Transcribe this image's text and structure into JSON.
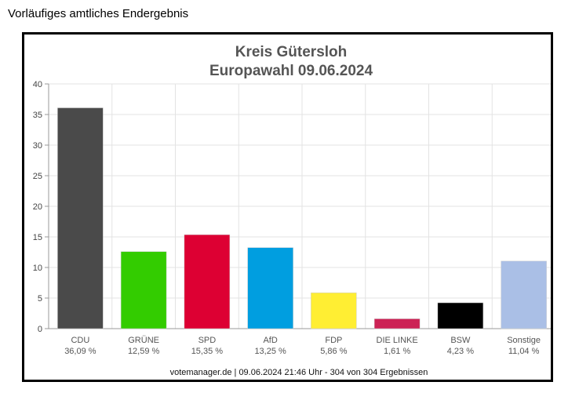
{
  "page": {
    "heading": "Vorläufiges amtliches Endergebnis"
  },
  "chart_data": {
    "type": "bar",
    "title": "Kreis Gütersloh",
    "subtitle": "Europawahl 09.06.2024",
    "ylim": [
      0,
      40
    ],
    "yticks": [
      0,
      5,
      10,
      15,
      20,
      25,
      30,
      35,
      40
    ],
    "grid": true,
    "categories": [
      "CDU",
      "GRÜNE",
      "SPD",
      "AfD",
      "FDP",
      "DIE LINKE",
      "BSW",
      "Sonstige"
    ],
    "values": [
      36.09,
      12.59,
      15.35,
      13.25,
      5.86,
      1.61,
      4.23,
      11.04
    ],
    "value_labels": [
      "36,09 %",
      "12,59 %",
      "15,35 %",
      "13,25 %",
      "5,86 %",
      "1,61 %",
      "4,23 %",
      "11,04 %"
    ],
    "colors": [
      "#4a4a4a",
      "#33cc00",
      "#dd0033",
      "#009ee0",
      "#ffee33",
      "#cc2255",
      "#000000",
      "#aabfe6"
    ],
    "footer": "votemanager.de | 09.06.2024 21:46 Uhr - 304 von 304 Ergebnissen"
  }
}
